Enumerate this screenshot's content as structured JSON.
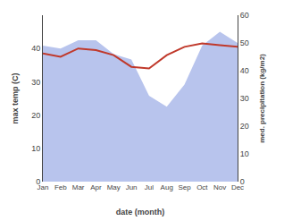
{
  "chart_data": {
    "type": "line",
    "categories": [
      "Jan",
      "Feb",
      "Mar",
      "Apr",
      "May",
      "Jun",
      "Jul",
      "Aug",
      "Sep",
      "Oct",
      "Nov",
      "Dec"
    ],
    "series": [
      {
        "type": "area",
        "axis": "y2",
        "color": "#b8c4ed",
        "values": [
          49,
          48,
          51,
          51,
          46,
          44,
          31,
          27,
          35,
          49,
          54,
          50
        ]
      },
      {
        "type": "line",
        "color": "#c0392b",
        "values": [
          38.5,
          37.5,
          40.0,
          39.5,
          38.0,
          34.5,
          34.0,
          38.0,
          40.5,
          41.5,
          41.0,
          40.5
        ]
      }
    ],
    "xlabel": "date (month)",
    "ylabel": "max temp (C)",
    "y2label": "med. precipitation (kg/m2)",
    "ylim": [
      0,
      50
    ],
    "yticks": [
      0,
      10,
      20,
      30,
      40
    ],
    "y2lim": [
      0,
      60
    ],
    "y2ticks": [
      0,
      10,
      20,
      30,
      40,
      50,
      60
    ],
    "grid": false
  }
}
